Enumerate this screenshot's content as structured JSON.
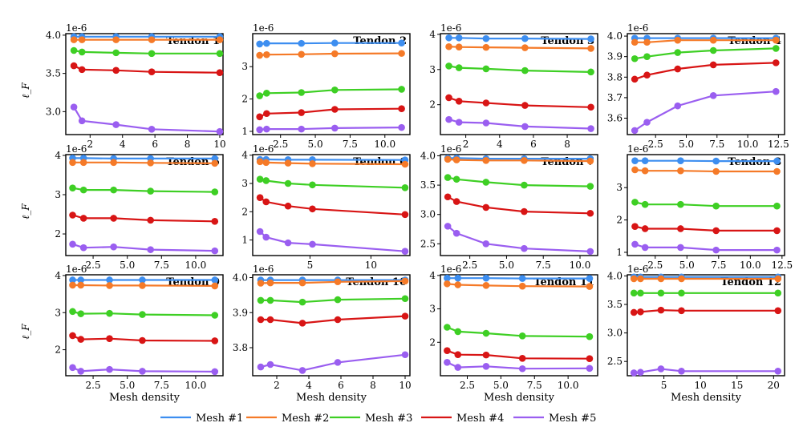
{
  "chart_data": {
    "type": "line",
    "xlabel": "Mesh density",
    "ylabel": "ℓ_F",
    "sci_multiplier": "1e-6",
    "series_names": [
      "Mesh #1",
      "Mesh #2",
      "Mesh #3",
      "Mesh #4",
      "Mesh #5"
    ],
    "series_colors": [
      "#3d8ef0",
      "#f57a28",
      "#3ecf24",
      "#d81515",
      "#9a5ef0"
    ],
    "panels": [
      {
        "title": "Tendon 1",
        "xlim": [
          0.5,
          10.2
        ],
        "ylim": [
          2.7,
          4.02
        ],
        "xticks": [
          2,
          4,
          6,
          8,
          10
        ],
        "xtick_labels": [
          "2",
          "4",
          "6",
          "8",
          "10"
        ],
        "yticks": [
          3.0,
          3.5,
          4.0
        ],
        "ytick_labels": [
          "3.0",
          "3.5",
          "4.0"
        ],
        "x": [
          1.0,
          1.5,
          3.6,
          5.8,
          10.0
        ],
        "series": [
          [
            3.98,
            3.98,
            3.98,
            3.98,
            3.98
          ],
          [
            3.94,
            3.94,
            3.94,
            3.94,
            3.94
          ],
          [
            3.8,
            3.78,
            3.77,
            3.76,
            3.76
          ],
          [
            3.6,
            3.55,
            3.54,
            3.52,
            3.51
          ],
          [
            3.06,
            2.88,
            2.83,
            2.77,
            2.74
          ]
        ]
      },
      {
        "title": "Tendon 2",
        "xlim": [
          0.5,
          11.8
        ],
        "ylim": [
          0.9,
          4.02
        ],
        "xticks": [
          2.5,
          5.0,
          7.5,
          10.0
        ],
        "xtick_labels": [
          "2.5",
          "5.0",
          "7.5",
          "10.0"
        ],
        "yticks": [
          1,
          2,
          3
        ],
        "ytick_labels": [
          "1",
          "2",
          "3"
        ],
        "x": [
          1.0,
          1.5,
          4.0,
          6.4,
          11.2
        ],
        "series": [
          [
            3.7,
            3.72,
            3.72,
            3.73,
            3.73
          ],
          [
            3.35,
            3.37,
            3.38,
            3.4,
            3.41
          ],
          [
            2.1,
            2.18,
            2.2,
            2.28,
            2.3
          ],
          [
            1.45,
            1.55,
            1.58,
            1.68,
            1.7
          ],
          [
            1.05,
            1.07,
            1.07,
            1.1,
            1.12
          ]
        ]
      },
      {
        "title": "Tendon 3",
        "xlim": [
          0.5,
          9.8
        ],
        "ylim": [
          1.15,
          4.02
        ],
        "xticks": [
          2,
          4,
          6,
          8
        ],
        "xtick_labels": [
          "2",
          "4",
          "6",
          "8"
        ],
        "yticks": [
          2,
          3,
          4
        ],
        "ytick_labels": [
          "2",
          "3",
          "4"
        ],
        "x": [
          1.0,
          1.6,
          3.2,
          5.5,
          9.4
        ],
        "series": [
          [
            3.9,
            3.9,
            3.88,
            3.88,
            3.87
          ],
          [
            3.65,
            3.64,
            3.63,
            3.62,
            3.6
          ],
          [
            3.1,
            3.05,
            3.02,
            2.97,
            2.93
          ],
          [
            2.2,
            2.1,
            2.05,
            1.98,
            1.93
          ],
          [
            1.58,
            1.5,
            1.48,
            1.38,
            1.32
          ]
        ]
      },
      {
        "title": "Tendon 4",
        "xlim": [
          0.2,
          13.0
        ],
        "ylim": [
          3.52,
          4.012
        ],
        "xticks": [
          2.5,
          5.0,
          7.5,
          10.0,
          12.5
        ],
        "xtick_labels": [
          "2.5",
          "5.0",
          "7.5",
          "10.0",
          "12.5"
        ],
        "yticks": [
          3.6,
          3.7,
          3.8,
          3.9,
          4.0
        ],
        "ytick_labels": [
          "3.6",
          "3.7",
          "3.8",
          "3.9",
          "4.0"
        ],
        "x": [
          0.8,
          1.8,
          4.3,
          7.2,
          12.3
        ],
        "series": [
          [
            3.99,
            3.99,
            3.99,
            3.99,
            3.99
          ],
          [
            3.97,
            3.97,
            3.98,
            3.98,
            3.98
          ],
          [
            3.89,
            3.9,
            3.92,
            3.93,
            3.94
          ],
          [
            3.79,
            3.81,
            3.84,
            3.86,
            3.87
          ],
          [
            3.54,
            3.58,
            3.66,
            3.71,
            3.73
          ]
        ]
      },
      {
        "title": "Tendon 5",
        "xlim": [
          0.5,
          12.0
        ],
        "ylim": [
          1.45,
          4.02
        ],
        "xticks": [
          2.5,
          5.0,
          7.5,
          10.0
        ],
        "xtick_labels": [
          "2.5",
          "5.0",
          "7.5",
          "10.0"
        ],
        "yticks": [
          2,
          3,
          4
        ],
        "ytick_labels": [
          "2",
          "3",
          "4"
        ],
        "x": [
          1.0,
          1.8,
          4.0,
          6.7,
          11.4
        ],
        "series": [
          [
            3.93,
            3.93,
            3.92,
            3.92,
            3.92
          ],
          [
            3.82,
            3.82,
            3.82,
            3.81,
            3.8
          ],
          [
            3.17,
            3.12,
            3.12,
            3.09,
            3.07
          ],
          [
            2.48,
            2.4,
            2.4,
            2.35,
            2.32
          ],
          [
            1.74,
            1.65,
            1.67,
            1.6,
            1.57
          ]
        ]
      },
      {
        "title": "Tendon 6",
        "xlim": [
          0.3,
          13.2
        ],
        "ylim": [
          0.45,
          4.02
        ],
        "xticks": [
          5,
          10
        ],
        "xtick_labels": [
          "5",
          "10"
        ],
        "yticks": [
          1,
          2,
          3,
          4
        ],
        "ytick_labels": [
          "1",
          "2",
          "3",
          "4"
        ],
        "x": [
          0.9,
          1.4,
          3.2,
          5.2,
          12.8
        ],
        "series": [
          [
            3.85,
            3.85,
            3.84,
            3.84,
            3.83
          ],
          [
            3.77,
            3.74,
            3.72,
            3.7,
            3.68
          ],
          [
            3.15,
            3.1,
            3.0,
            2.95,
            2.85
          ],
          [
            2.5,
            2.35,
            2.2,
            2.1,
            1.9
          ],
          [
            1.3,
            1.1,
            0.9,
            0.85,
            0.6
          ]
        ]
      },
      {
        "title": "Tendon 7",
        "xlim": [
          0.5,
          11.2
        ],
        "ylim": [
          2.3,
          4.02
        ],
        "xticks": [
          2.5,
          5.0,
          7.5,
          10.0
        ],
        "xtick_labels": [
          "2.5",
          "5.0",
          "7.5",
          "10.0"
        ],
        "yticks": [
          2.5,
          3.0,
          3.5,
          4.0
        ],
        "ytick_labels": [
          "2.5",
          "3.0",
          "3.5",
          "4.0"
        ],
        "x": [
          1.0,
          1.6,
          3.6,
          6.2,
          10.7
        ],
        "series": [
          [
            3.96,
            3.96,
            3.95,
            3.95,
            3.95
          ],
          [
            3.94,
            3.93,
            3.92,
            3.92,
            3.91
          ],
          [
            3.63,
            3.6,
            3.55,
            3.5,
            3.48
          ],
          [
            3.3,
            3.22,
            3.12,
            3.05,
            3.02
          ],
          [
            2.8,
            2.68,
            2.5,
            2.42,
            2.37
          ]
        ]
      },
      {
        "title": "Tendon 8",
        "xlim": [
          0.3,
          12.7
        ],
        "ylim": [
          0.9,
          4.02
        ],
        "xticks": [
          2.5,
          5.0,
          7.5,
          10.0,
          12.5
        ],
        "xtick_labels": [
          "2.5",
          "5.0",
          "7.5",
          "10.0",
          "12.5"
        ],
        "yticks": [
          1,
          2,
          3
        ],
        "ytick_labels": [
          "1",
          "2",
          "3"
        ],
        "x": [
          0.9,
          1.7,
          4.5,
          7.3,
          12.1
        ],
        "series": [
          [
            3.83,
            3.83,
            3.83,
            3.82,
            3.82
          ],
          [
            3.55,
            3.52,
            3.52,
            3.5,
            3.5
          ],
          [
            2.55,
            2.48,
            2.48,
            2.43,
            2.43
          ],
          [
            1.8,
            1.73,
            1.73,
            1.67,
            1.67
          ],
          [
            1.25,
            1.15,
            1.15,
            1.07,
            1.07
          ]
        ]
      },
      {
        "title": "Tendon 9",
        "xlim": [
          0.5,
          12.0
        ],
        "ylim": [
          1.3,
          4.02
        ],
        "xticks": [
          2.5,
          5.0,
          7.5,
          10.0
        ],
        "xtick_labels": [
          "2.5",
          "5.0",
          "7.5",
          "10.0"
        ],
        "yticks": [
          2,
          3,
          4
        ],
        "ytick_labels": [
          "2",
          "3",
          "4"
        ],
        "x": [
          1.0,
          1.6,
          3.7,
          6.1,
          11.4
        ],
        "series": [
          [
            3.88,
            3.88,
            3.88,
            3.88,
            3.88
          ],
          [
            3.74,
            3.74,
            3.73,
            3.73,
            3.72
          ],
          [
            3.03,
            2.97,
            2.98,
            2.95,
            2.93
          ],
          [
            2.38,
            2.28,
            2.3,
            2.25,
            2.24
          ],
          [
            1.52,
            1.42,
            1.47,
            1.42,
            1.41
          ]
        ]
      },
      {
        "title": "Tendon 10",
        "xlim": [
          0.5,
          10.3
        ],
        "ylim": [
          3.72,
          4.008
        ],
        "xticks": [
          2,
          4,
          6,
          8,
          10
        ],
        "xtick_labels": [
          "2",
          "4",
          "6",
          "8",
          "10"
        ],
        "yticks": [
          3.8,
          3.9,
          4.0
        ],
        "ytick_labels": [
          "3.8",
          "3.9",
          "4.0"
        ],
        "x": [
          1.0,
          1.6,
          3.6,
          5.8,
          10.0
        ],
        "series": [
          [
            3.993,
            3.993,
            3.993,
            3.993,
            3.993
          ],
          [
            3.984,
            3.985,
            3.985,
            3.988,
            3.99
          ],
          [
            3.935,
            3.935,
            3.93,
            3.937,
            3.94
          ],
          [
            3.88,
            3.88,
            3.87,
            3.88,
            3.89
          ],
          [
            3.745,
            3.752,
            3.735,
            3.758,
            3.78
          ]
        ]
      },
      {
        "title": "Tendon 11",
        "xlim": [
          0.5,
          12.2
        ],
        "ylim": [
          1.0,
          4.02
        ],
        "xticks": [
          2.5,
          5.0,
          7.5,
          10.0
        ],
        "xtick_labels": [
          "2.5",
          "5.0",
          "7.5",
          "10.0"
        ],
        "yticks": [
          2,
          3,
          4
        ],
        "ytick_labels": [
          "2",
          "3",
          "4"
        ],
        "x": [
          1.0,
          1.8,
          3.9,
          6.6,
          11.6
        ],
        "series": [
          [
            3.92,
            3.92,
            3.92,
            3.91,
            3.91
          ],
          [
            3.75,
            3.72,
            3.7,
            3.68,
            3.67
          ],
          [
            2.45,
            2.32,
            2.27,
            2.19,
            2.17
          ],
          [
            1.75,
            1.63,
            1.62,
            1.52,
            1.51
          ],
          [
            1.4,
            1.25,
            1.28,
            1.21,
            1.22
          ]
        ]
      },
      {
        "title": "Tendon 12",
        "xlim": [
          0.0,
          21.5
        ],
        "ylim": [
          2.25,
          4.02
        ],
        "xticks": [
          5,
          10,
          15,
          20
        ],
        "xtick_labels": [
          "5",
          "10",
          "15",
          "20"
        ],
        "yticks": [
          2.5,
          3.0,
          3.5,
          4.0
        ],
        "ytick_labels": [
          "2.5",
          "3.0",
          "3.5",
          "4.0"
        ],
        "x": [
          0.9,
          1.8,
          4.6,
          7.4,
          20.6
        ],
        "series": [
          [
            3.98,
            3.98,
            3.98,
            3.98,
            3.98
          ],
          [
            3.95,
            3.95,
            3.95,
            3.95,
            3.95
          ],
          [
            3.7,
            3.7,
            3.7,
            3.7,
            3.7
          ],
          [
            3.36,
            3.37,
            3.4,
            3.39,
            3.39
          ],
          [
            2.3,
            2.31,
            2.37,
            2.33,
            2.33
          ]
        ]
      }
    ]
  }
}
